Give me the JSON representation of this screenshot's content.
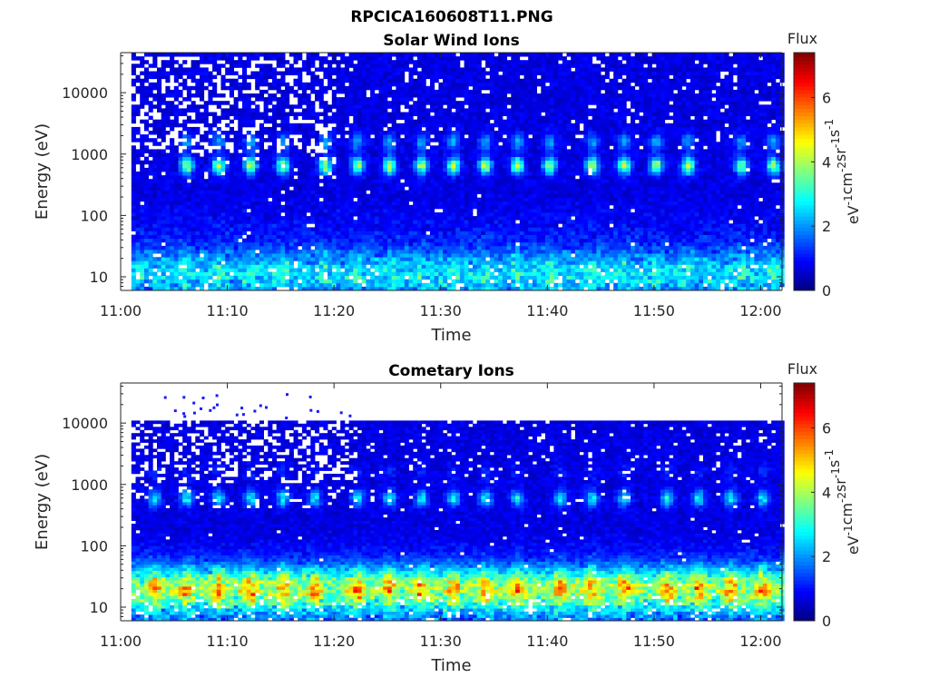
{
  "figure_title": "RPCICA160608T11.PNG",
  "colors": {
    "axis": "#262626",
    "missing_data": "#ffffff"
  },
  "chart_data": [
    {
      "type": "heatmap",
      "title": "Solar Wind Ions",
      "xlabel": "Time",
      "ylabel": "Energy (eV)",
      "x_range": [
        "11:01",
        "12:02"
      ],
      "xlim": [
        "11:00",
        "12:02"
      ],
      "x_ticks": [
        "11:00",
        "11:10",
        "11:20",
        "11:30",
        "11:40",
        "11:50",
        "12:00"
      ],
      "y_scale": "log",
      "ylim": [
        6,
        45000
      ],
      "y_ticks": [
        10,
        100,
        1000,
        10000
      ],
      "y_tick_labels": [
        "10",
        "100",
        "1000",
        "10000"
      ],
      "colorbar": {
        "label": "Flux",
        "unit": "eV-1cm-2sr-1s-1",
        "range": [
          0,
          7.4
        ],
        "ticks": [
          0,
          2,
          4,
          6
        ],
        "colormap": "jet"
      },
      "features": {
        "energy_bands": [
          {
            "energy": 650,
            "flux": 4.0
          }
        ],
        "low_energy_band": {
          "energy": 12,
          "flux": 2.5
        },
        "white_line_energy": 200,
        "pulse_times": [
          "11:06",
          "11:09",
          "11:12",
          "11:15",
          "11:19",
          "11:22",
          "11:25",
          "11:28",
          "11:31",
          "11:34",
          "11:37",
          "11:40",
          "11:44",
          "11:47",
          "11:50",
          "11:53",
          "11:58",
          "12:01"
        ],
        "sparse_region": [
          "11:01",
          "11:20"
        ]
      }
    },
    {
      "type": "heatmap",
      "title": "Cometary Ions",
      "xlabel": "Time",
      "ylabel": "Energy (eV)",
      "x_range": [
        "11:01",
        "12:02"
      ],
      "xlim": [
        "11:00",
        "12:02"
      ],
      "x_ticks": [
        "11:00",
        "11:10",
        "11:20",
        "11:30",
        "11:40",
        "11:50",
        "12:00"
      ],
      "y_scale": "log",
      "ylim": [
        6,
        45000
      ],
      "y_ticks": [
        10,
        100,
        1000,
        10000
      ],
      "y_tick_labels": [
        "10",
        "100",
        "1000",
        "10000"
      ],
      "data_energy_max": 11000,
      "colorbar": {
        "label": "Flux",
        "unit": "eV-1cm-2sr-1s-1",
        "range": [
          0,
          7.4
        ],
        "ticks": [
          0,
          2,
          4,
          6
        ],
        "colormap": "jet"
      },
      "features": {
        "energy_bands": [
          {
            "energy": 600,
            "flux": 2.6
          }
        ],
        "low_energy_band": {
          "energy": 20,
          "flux": 5.0
        },
        "pulse_times": [
          "11:03",
          "11:06",
          "11:09",
          "11:12",
          "11:15",
          "11:18",
          "11:22",
          "11:25",
          "11:28",
          "11:31",
          "11:34",
          "11:37",
          "11:41",
          "11:44",
          "11:47",
          "11:51",
          "11:54",
          "11:57",
          "12:00"
        ],
        "sparse_region": [
          "11:01",
          "11:22"
        ]
      }
    }
  ]
}
